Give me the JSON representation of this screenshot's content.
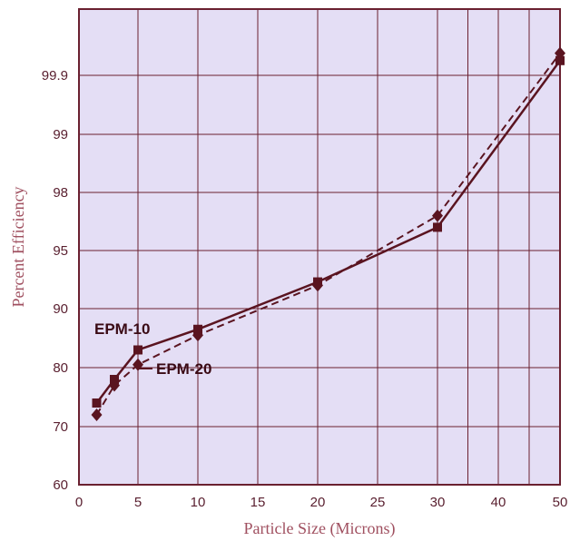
{
  "chart_data": {
    "type": "line",
    "xlabel": "Particle Size (Microns)",
    "ylabel": "Percent Efficiency",
    "xlim": [
      0,
      50
    ],
    "x_ticks": [
      "0",
      "5",
      "10",
      "15",
      "20",
      "25",
      "30",
      "40",
      "50"
    ],
    "y_ticks": [
      "60",
      "70",
      "80",
      "90",
      "95",
      "98",
      "99",
      "99.9"
    ],
    "grid": true,
    "series": [
      {
        "name": "EPM-10",
        "style": "solid",
        "marker": "square",
        "x": [
          1.5,
          3,
          5,
          10,
          20,
          30,
          50
        ],
        "y": [
          74,
          78,
          83,
          86.5,
          92.3,
          96.2,
          99.92
        ]
      },
      {
        "name": "EPM-20",
        "style": "dashed",
        "marker": "diamond",
        "x": [
          1.5,
          3,
          5,
          10,
          20,
          30,
          50
        ],
        "y": [
          72,
          77,
          80.5,
          85.5,
          92,
          96.8,
          99.93
        ]
      }
    ],
    "colors": {
      "plot_background": "#e4def5",
      "grid": "#6a2030",
      "line": "#5a1420"
    }
  }
}
